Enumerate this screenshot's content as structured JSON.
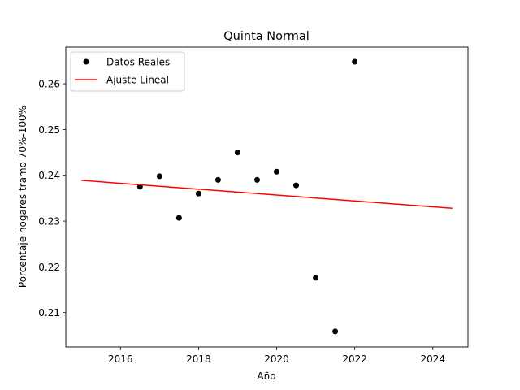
{
  "chart_data": {
    "type": "scatter",
    "title": "Quinta Normal",
    "xlabel": "Año",
    "ylabel": "Porcentaje hogares tramo 70%-100%",
    "xlim": [
      2014.6,
      2024.9
    ],
    "ylim": [
      0.2025,
      0.268
    ],
    "xticks": [
      2016,
      2018,
      2020,
      2022,
      2024
    ],
    "yticks": [
      0.21,
      0.22,
      0.23,
      0.24,
      0.25,
      0.26
    ],
    "legend_position": "top-left",
    "grid": false,
    "series": [
      {
        "name": "Datos Reales",
        "kind": "scatter",
        "color": "#000000",
        "points": [
          {
            "x": 2016.5,
            "y": 0.2375
          },
          {
            "x": 2017.0,
            "y": 0.2398
          },
          {
            "x": 2017.5,
            "y": 0.2307
          },
          {
            "x": 2018.0,
            "y": 0.236
          },
          {
            "x": 2018.5,
            "y": 0.239
          },
          {
            "x": 2019.0,
            "y": 0.245
          },
          {
            "x": 2019.5,
            "y": 0.239
          },
          {
            "x": 2020.0,
            "y": 0.2408
          },
          {
            "x": 2020.5,
            "y": 0.2378
          },
          {
            "x": 2021.0,
            "y": 0.2176
          },
          {
            "x": 2021.5,
            "y": 0.2059
          },
          {
            "x": 2022.0,
            "y": 0.2648
          }
        ]
      },
      {
        "name": "Ajuste Lineal",
        "kind": "line",
        "color": "#ff0000",
        "points": [
          {
            "x": 2015.0,
            "y": 0.2389
          },
          {
            "x": 2024.5,
            "y": 0.2328
          }
        ]
      }
    ]
  }
}
